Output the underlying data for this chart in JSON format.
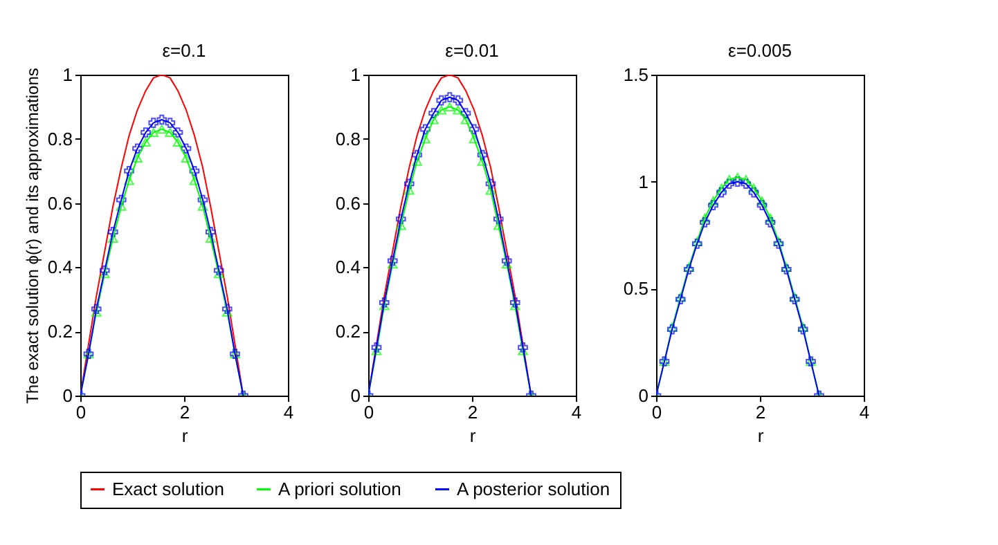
{
  "chart_data": [
    {
      "type": "line",
      "title": "ε=0.1",
      "xlabel": "r",
      "ylabel": "The exact solution ϕ(r) and its approximations",
      "x": [
        0,
        0.16,
        0.31,
        0.47,
        0.63,
        0.79,
        0.94,
        1.1,
        1.26,
        1.41,
        1.57,
        1.73,
        1.88,
        2.04,
        2.2,
        2.36,
        2.51,
        2.67,
        2.83,
        2.98,
        3.14
      ],
      "xlim": [
        0,
        4
      ],
      "xticks": [
        0,
        2,
        4
      ],
      "ylim": [
        0,
        1
      ],
      "yticks": [
        0,
        0.2,
        0.4,
        0.6,
        0.8,
        1
      ],
      "grid": false,
      "legend": "bottom",
      "series": [
        {
          "name": "Exact solution",
          "color": "#ff0000",
          "marker": "none",
          "values": [
            0,
            0.16,
            0.31,
            0.45,
            0.59,
            0.71,
            0.81,
            0.89,
            0.95,
            0.99,
            1.0,
            0.99,
            0.95,
            0.89,
            0.81,
            0.71,
            0.59,
            0.45,
            0.31,
            0.16,
            0
          ]
        },
        {
          "name": "A priori solution",
          "color": "#00ff00",
          "marker": "triangle",
          "values": [
            0,
            0.13,
            0.26,
            0.38,
            0.49,
            0.59,
            0.67,
            0.74,
            0.79,
            0.82,
            0.83,
            0.82,
            0.79,
            0.74,
            0.67,
            0.59,
            0.49,
            0.38,
            0.26,
            0.13,
            0
          ]
        },
        {
          "name": "A posterior solution",
          "color": "#0000ff",
          "marker": "cross",
          "values": [
            0,
            0.13,
            0.27,
            0.39,
            0.51,
            0.61,
            0.7,
            0.77,
            0.82,
            0.85,
            0.86,
            0.85,
            0.82,
            0.77,
            0.7,
            0.61,
            0.51,
            0.39,
            0.27,
            0.13,
            0
          ]
        }
      ]
    },
    {
      "type": "line",
      "title": "ε=0.01",
      "xlabel": "r",
      "x": [
        0,
        0.16,
        0.31,
        0.47,
        0.63,
        0.79,
        0.94,
        1.1,
        1.26,
        1.41,
        1.57,
        1.73,
        1.88,
        2.04,
        2.2,
        2.36,
        2.51,
        2.67,
        2.83,
        2.98,
        3.14
      ],
      "xlim": [
        0,
        4
      ],
      "xticks": [
        0,
        2,
        4
      ],
      "ylim": [
        0,
        1
      ],
      "yticks": [
        0,
        0.2,
        0.4,
        0.6,
        0.8,
        1
      ],
      "grid": false,
      "legend": "bottom",
      "series": [
        {
          "name": "Exact solution",
          "color": "#ff0000",
          "marker": "none",
          "values": [
            0,
            0.16,
            0.31,
            0.45,
            0.59,
            0.71,
            0.81,
            0.89,
            0.95,
            0.99,
            1.0,
            0.99,
            0.95,
            0.89,
            0.81,
            0.71,
            0.59,
            0.45,
            0.31,
            0.16,
            0
          ]
        },
        {
          "name": "A priori solution",
          "color": "#00ff00",
          "marker": "triangle",
          "values": [
            0,
            0.14,
            0.28,
            0.41,
            0.53,
            0.64,
            0.73,
            0.8,
            0.86,
            0.89,
            0.9,
            0.89,
            0.86,
            0.8,
            0.73,
            0.64,
            0.53,
            0.41,
            0.28,
            0.14,
            0
          ]
        },
        {
          "name": "A posterior solution",
          "color": "#0000ff",
          "marker": "cross",
          "values": [
            0,
            0.15,
            0.29,
            0.42,
            0.55,
            0.66,
            0.75,
            0.83,
            0.88,
            0.92,
            0.93,
            0.92,
            0.88,
            0.83,
            0.75,
            0.66,
            0.55,
            0.42,
            0.29,
            0.15,
            0
          ]
        }
      ]
    },
    {
      "type": "line",
      "title": "ε=0.005",
      "xlabel": "r",
      "x": [
        0,
        0.16,
        0.31,
        0.47,
        0.63,
        0.79,
        0.94,
        1.1,
        1.26,
        1.41,
        1.57,
        1.73,
        1.88,
        2.04,
        2.2,
        2.36,
        2.51,
        2.67,
        2.83,
        2.98,
        3.14
      ],
      "xlim": [
        0,
        4
      ],
      "xticks": [
        0,
        2,
        4
      ],
      "ylim": [
        0,
        1.5
      ],
      "yticks": [
        0,
        0.5,
        1,
        1.5
      ],
      "grid": false,
      "legend": "bottom",
      "series": [
        {
          "name": "Exact solution",
          "color": "#ff0000",
          "marker": "none",
          "values": [
            null,
            null,
            null,
            null,
            null,
            null,
            null,
            null,
            null,
            null,
            null,
            null,
            null,
            null,
            null,
            null,
            null,
            null,
            null,
            null,
            null
          ]
        },
        {
          "name": "A priori solution",
          "color": "#00ff00",
          "marker": "triangle",
          "values": [
            0,
            0.16,
            0.32,
            0.46,
            0.6,
            0.72,
            0.83,
            0.91,
            0.97,
            1.01,
            1.02,
            1.01,
            0.97,
            0.91,
            0.83,
            0.72,
            0.6,
            0.46,
            0.32,
            0.16,
            0
          ]
        },
        {
          "name": "A posterior solution",
          "color": "#0000ff",
          "marker": "cross",
          "values": [
            0,
            0.16,
            0.31,
            0.45,
            0.59,
            0.71,
            0.81,
            0.89,
            0.95,
            0.99,
            1.0,
            0.99,
            0.95,
            0.89,
            0.81,
            0.71,
            0.59,
            0.45,
            0.31,
            0.16,
            0
          ]
        }
      ]
    }
  ]
}
